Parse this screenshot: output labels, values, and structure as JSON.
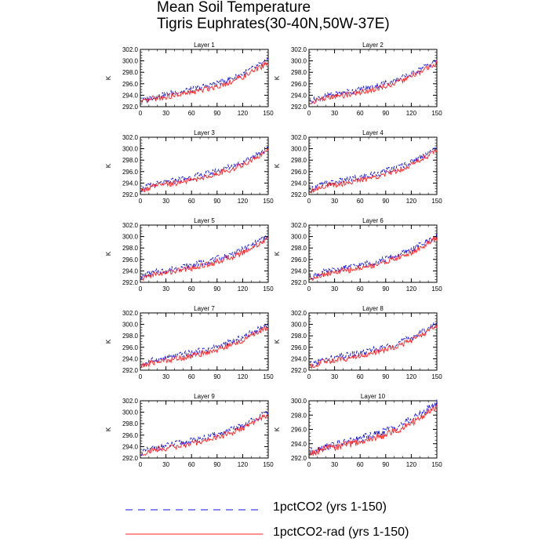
{
  "title": "Mean Soil Temperature",
  "subtitle": "Tigris Euphrates(30-40N,50W-37E)",
  "colors": {
    "series1": "#1010e0",
    "series2": "#ff2020",
    "axis": "#000000"
  },
  "legend": [
    {
      "label": "1pctCO2 (yrs 1-150)",
      "color": "#1010e0",
      "style": "dashed"
    },
    {
      "label": "1pctCO2-rad (yrs 1-150)",
      "color": "#ff2020",
      "style": "solid"
    }
  ],
  "chart_data": [
    {
      "type": "line",
      "title": "Layer 1",
      "ylabel": "K",
      "xlim": [
        0,
        150
      ],
      "ylim": [
        292,
        302
      ],
      "xticks": [
        "0",
        "30",
        "60",
        "90",
        "120",
        "150"
      ],
      "yticks": [
        "292.0",
        "294.0",
        "296.0",
        "298.0",
        "300.0",
        "302.0"
      ],
      "series": [
        {
          "name": "1pctCO2 (yrs 1-150)",
          "x": [
            0,
            15,
            30,
            45,
            60,
            75,
            90,
            105,
            120,
            135,
            150
          ],
          "values": [
            292.9,
            293.7,
            294.1,
            294.6,
            295.0,
            295.5,
            296.1,
            296.8,
            297.7,
            298.9,
            300.1
          ]
        },
        {
          "name": "1pctCO2-rad (yrs 1-150)",
          "x": [
            0,
            15,
            30,
            45,
            60,
            75,
            90,
            105,
            120,
            135,
            150
          ],
          "values": [
            292.6,
            293.4,
            293.7,
            294.1,
            294.5,
            295.0,
            295.6,
            296.3,
            297.2,
            298.4,
            299.7
          ]
        }
      ]
    },
    {
      "type": "line",
      "title": "Layer 2",
      "ylabel": "K",
      "xlim": [
        0,
        150
      ],
      "ylim": [
        292,
        302
      ],
      "xticks": [
        "0",
        "30",
        "60",
        "90",
        "120",
        "150"
      ],
      "yticks": [
        "292.0",
        "294.0",
        "296.0",
        "298.0",
        "300.0",
        "302.0"
      ],
      "series": [
        {
          "name": "1pctCO2 (yrs 1-150)",
          "x": [
            0,
            15,
            30,
            45,
            60,
            75,
            90,
            105,
            120,
            135,
            150
          ],
          "values": [
            292.9,
            293.7,
            294.1,
            294.6,
            295.0,
            295.5,
            296.1,
            296.8,
            297.7,
            298.9,
            300.1
          ]
        },
        {
          "name": "1pctCO2-rad (yrs 1-150)",
          "x": [
            0,
            15,
            30,
            45,
            60,
            75,
            90,
            105,
            120,
            135,
            150
          ],
          "values": [
            292.6,
            293.4,
            293.7,
            294.1,
            294.5,
            295.0,
            295.6,
            296.3,
            297.2,
            298.4,
            299.7
          ]
        }
      ]
    },
    {
      "type": "line",
      "title": "Layer 3",
      "ylabel": "K",
      "xlim": [
        0,
        150
      ],
      "ylim": [
        292,
        302
      ],
      "xticks": [
        "0",
        "30",
        "60",
        "90",
        "120",
        "150"
      ],
      "yticks": [
        "292.0",
        "294.0",
        "296.0",
        "298.0",
        "300.0",
        "302.0"
      ],
      "series": [
        {
          "name": "1pctCO2 (yrs 1-150)",
          "x": [
            0,
            15,
            30,
            45,
            60,
            75,
            90,
            105,
            120,
            135,
            150
          ],
          "values": [
            292.9,
            293.7,
            294.1,
            294.6,
            295.0,
            295.5,
            296.1,
            296.8,
            297.7,
            298.9,
            300.1
          ]
        },
        {
          "name": "1pctCO2-rad (yrs 1-150)",
          "x": [
            0,
            15,
            30,
            45,
            60,
            75,
            90,
            105,
            120,
            135,
            150
          ],
          "values": [
            292.6,
            293.4,
            293.7,
            294.1,
            294.5,
            295.0,
            295.6,
            296.3,
            297.2,
            298.4,
            299.7
          ]
        }
      ]
    },
    {
      "type": "line",
      "title": "Layer 4",
      "ylabel": "K",
      "xlim": [
        0,
        150
      ],
      "ylim": [
        292,
        302
      ],
      "xticks": [
        "0",
        "30",
        "60",
        "90",
        "120",
        "150"
      ],
      "yticks": [
        "292.0",
        "294.0",
        "296.0",
        "298.0",
        "300.0",
        "302.0"
      ],
      "series": [
        {
          "name": "1pctCO2 (yrs 1-150)",
          "x": [
            0,
            15,
            30,
            45,
            60,
            75,
            90,
            105,
            120,
            135,
            150
          ],
          "values": [
            292.9,
            293.7,
            294.1,
            294.6,
            295.0,
            295.5,
            296.1,
            296.8,
            297.7,
            298.9,
            300.1
          ]
        },
        {
          "name": "1pctCO2-rad (yrs 1-150)",
          "x": [
            0,
            15,
            30,
            45,
            60,
            75,
            90,
            105,
            120,
            135,
            150
          ],
          "values": [
            292.6,
            293.4,
            293.7,
            294.1,
            294.5,
            295.0,
            295.6,
            296.3,
            297.2,
            298.4,
            299.7
          ]
        }
      ]
    },
    {
      "type": "line",
      "title": "Layer 5",
      "ylabel": "K",
      "xlim": [
        0,
        150
      ],
      "ylim": [
        292,
        302
      ],
      "xticks": [
        "0",
        "30",
        "60",
        "90",
        "120",
        "150"
      ],
      "yticks": [
        "292.0",
        "294.0",
        "296.0",
        "298.0",
        "300.0",
        "302.0"
      ],
      "series": [
        {
          "name": "1pctCO2 (yrs 1-150)",
          "x": [
            0,
            15,
            30,
            45,
            60,
            75,
            90,
            105,
            120,
            135,
            150
          ],
          "values": [
            292.9,
            293.7,
            294.1,
            294.6,
            295.0,
            295.5,
            296.1,
            296.8,
            297.7,
            298.9,
            300.1
          ]
        },
        {
          "name": "1pctCO2-rad (yrs 1-150)",
          "x": [
            0,
            15,
            30,
            45,
            60,
            75,
            90,
            105,
            120,
            135,
            150
          ],
          "values": [
            292.6,
            293.4,
            293.7,
            294.1,
            294.5,
            295.0,
            295.6,
            296.3,
            297.2,
            298.4,
            299.7
          ]
        }
      ]
    },
    {
      "type": "line",
      "title": "Layer 6",
      "ylabel": "K",
      "xlim": [
        0,
        150
      ],
      "ylim": [
        292,
        302
      ],
      "xticks": [
        "0",
        "30",
        "60",
        "90",
        "120",
        "150"
      ],
      "yticks": [
        "292.0",
        "294.0",
        "296.0",
        "298.0",
        "300.0",
        "302.0"
      ],
      "series": [
        {
          "name": "1pctCO2 (yrs 1-150)",
          "x": [
            0,
            15,
            30,
            45,
            60,
            75,
            90,
            105,
            120,
            135,
            150
          ],
          "values": [
            292.9,
            293.7,
            294.1,
            294.6,
            295.0,
            295.5,
            296.1,
            296.8,
            297.7,
            298.9,
            300.1
          ]
        },
        {
          "name": "1pctCO2-rad (yrs 1-150)",
          "x": [
            0,
            15,
            30,
            45,
            60,
            75,
            90,
            105,
            120,
            135,
            150
          ],
          "values": [
            292.6,
            293.4,
            293.7,
            294.1,
            294.5,
            295.0,
            295.6,
            296.3,
            297.2,
            298.4,
            299.7
          ]
        }
      ]
    },
    {
      "type": "line",
      "title": "Layer 7",
      "ylabel": "K",
      "xlim": [
        0,
        150
      ],
      "ylim": [
        292,
        302
      ],
      "xticks": [
        "0",
        "30",
        "60",
        "90",
        "120",
        "150"
      ],
      "yticks": [
        "292.0",
        "294.0",
        "296.0",
        "298.0",
        "300.0",
        "302.0"
      ],
      "series": [
        {
          "name": "1pctCO2 (yrs 1-150)",
          "x": [
            0,
            15,
            30,
            45,
            60,
            75,
            90,
            105,
            120,
            135,
            150
          ],
          "values": [
            292.9,
            293.7,
            294.1,
            294.6,
            295.0,
            295.5,
            296.1,
            296.8,
            297.7,
            298.9,
            300.1
          ]
        },
        {
          "name": "1pctCO2-rad (yrs 1-150)",
          "x": [
            0,
            15,
            30,
            45,
            60,
            75,
            90,
            105,
            120,
            135,
            150
          ],
          "values": [
            292.6,
            293.4,
            293.7,
            294.1,
            294.5,
            295.0,
            295.6,
            296.3,
            297.2,
            298.4,
            299.7
          ]
        }
      ]
    },
    {
      "type": "line",
      "title": "Layer 8",
      "ylabel": "K",
      "xlim": [
        0,
        150
      ],
      "ylim": [
        292,
        302
      ],
      "xticks": [
        "0",
        "30",
        "60",
        "90",
        "120",
        "150"
      ],
      "yticks": [
        "292.0",
        "294.0",
        "296.0",
        "298.0",
        "300.0",
        "302.0"
      ],
      "series": [
        {
          "name": "1pctCO2 (yrs 1-150)",
          "x": [
            0,
            15,
            30,
            45,
            60,
            75,
            90,
            105,
            120,
            135,
            150
          ],
          "values": [
            292.9,
            293.7,
            294.1,
            294.6,
            295.0,
            295.5,
            296.1,
            296.8,
            297.7,
            298.9,
            300.1
          ]
        },
        {
          "name": "1pctCO2-rad (yrs 1-150)",
          "x": [
            0,
            15,
            30,
            45,
            60,
            75,
            90,
            105,
            120,
            135,
            150
          ],
          "values": [
            292.6,
            293.4,
            293.7,
            294.1,
            294.5,
            295.0,
            295.6,
            296.3,
            297.2,
            298.4,
            299.7
          ]
        }
      ]
    },
    {
      "type": "line",
      "title": "Layer 9",
      "ylabel": "K",
      "xlim": [
        0,
        150
      ],
      "ylim": [
        292,
        302
      ],
      "xticks": [
        "0",
        "30",
        "60",
        "90",
        "120",
        "150"
      ],
      "yticks": [
        "292.0",
        "294.0",
        "296.0",
        "298.0",
        "300.0",
        "302.0"
      ],
      "series": [
        {
          "name": "1pctCO2 (yrs 1-150)",
          "x": [
            0,
            15,
            30,
            45,
            60,
            75,
            90,
            105,
            120,
            135,
            150
          ],
          "values": [
            292.9,
            293.7,
            294.1,
            294.6,
            295.0,
            295.5,
            296.1,
            296.8,
            297.7,
            298.9,
            300.1
          ]
        },
        {
          "name": "1pctCO2-rad (yrs 1-150)",
          "x": [
            0,
            15,
            30,
            45,
            60,
            75,
            90,
            105,
            120,
            135,
            150
          ],
          "values": [
            292.6,
            293.4,
            293.7,
            294.1,
            294.5,
            295.0,
            295.6,
            296.3,
            297.2,
            298.4,
            299.7
          ]
        }
      ]
    },
    {
      "type": "line",
      "title": "Layer 10",
      "ylabel": "K",
      "xlim": [
        0,
        150
      ],
      "ylim": [
        292,
        300
      ],
      "xticks": [
        "0",
        "30",
        "60",
        "90",
        "120",
        "150"
      ],
      "yticks": [
        "292.0",
        "294.0",
        "296.0",
        "298.0",
        "300.0"
      ],
      "series": [
        {
          "name": "1pctCO2 (yrs 1-150)",
          "x": [
            0,
            15,
            30,
            45,
            60,
            75,
            90,
            105,
            120,
            135,
            150
          ],
          "values": [
            292.8,
            293.5,
            293.9,
            294.3,
            294.7,
            295.2,
            295.8,
            296.5,
            297.4,
            298.5,
            299.7
          ]
        },
        {
          "name": "1pctCO2-rad (yrs 1-150)",
          "x": [
            0,
            15,
            30,
            45,
            60,
            75,
            90,
            105,
            120,
            135,
            150
          ],
          "values": [
            292.5,
            293.2,
            293.5,
            293.9,
            294.2,
            294.7,
            295.3,
            296.0,
            296.9,
            298.0,
            299.3
          ]
        }
      ]
    }
  ]
}
